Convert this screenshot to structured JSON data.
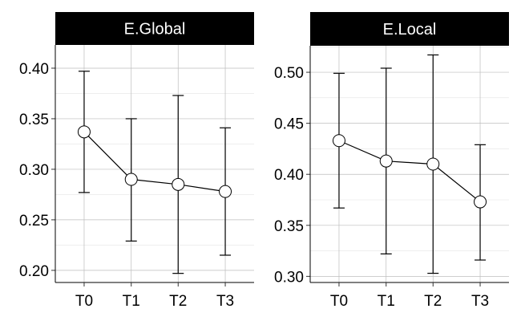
{
  "chart_data": [
    {
      "type": "line",
      "title": "E.Global",
      "categories": [
        "T0",
        "T1",
        "T2",
        "T3"
      ],
      "values": [
        0.337,
        0.29,
        0.285,
        0.278
      ],
      "error_low": [
        0.277,
        0.229,
        0.197,
        0.215
      ],
      "error_high": [
        0.397,
        0.35,
        0.373,
        0.341
      ],
      "ylim": [
        0.188,
        0.423
      ],
      "yticks": [
        0.2,
        0.25,
        0.3,
        0.35,
        0.4
      ],
      "ytick_labels": [
        "0.20",
        "0.25",
        "0.30",
        "0.35",
        "0.40"
      ],
      "xlabel": "",
      "ylabel": "",
      "grid": true
    },
    {
      "type": "line",
      "title": "E.Local",
      "categories": [
        "T0",
        "T1",
        "T2",
        "T3"
      ],
      "values": [
        0.433,
        0.413,
        0.41,
        0.373
      ],
      "error_low": [
        0.367,
        0.322,
        0.303,
        0.316
      ],
      "error_high": [
        0.499,
        0.504,
        0.517,
        0.429
      ],
      "ylim": [
        0.294,
        0.526
      ],
      "yticks": [
        0.3,
        0.35,
        0.4,
        0.45,
        0.5
      ],
      "ytick_labels": [
        "0.30",
        "0.35",
        "0.40",
        "0.45",
        "0.50"
      ],
      "xlabel": "",
      "ylabel": "",
      "grid": true
    }
  ],
  "colors": {
    "strip_background": "#000000",
    "strip_text": "#ffffff",
    "grid_major": "#bdbdbd",
    "grid_minor": "#e3e3e3",
    "line": "#000000",
    "point_fill": "#ffffff"
  }
}
